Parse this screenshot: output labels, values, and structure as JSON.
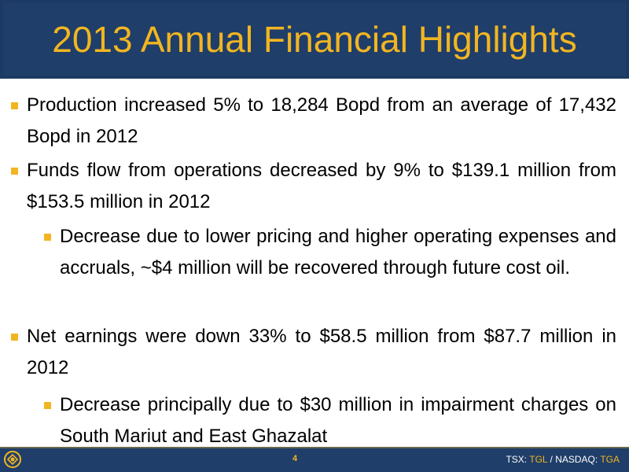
{
  "slide": {
    "title": "2013 Annual Financial Highlights",
    "bullets": [
      {
        "level": 1,
        "text": "Production increased 5% to 18,284 Bopd from an average of 17,432 Bopd in 2012"
      },
      {
        "level": 1,
        "text": "Funds flow from operations decreased by 9% to $139.1 million from $153.5 million in 2012"
      },
      {
        "level": 2,
        "text": "Decrease due to lower pricing and higher operating expenses and accruals, ~$4 million will be recovered through future cost oil."
      },
      {
        "level": 1,
        "text": "Net earnings were down 33% to $58.5 million from $87.7 million in 2012"
      },
      {
        "level": 2,
        "text": "Decrease principally due to $30 million in  impairment charges on South Mariut and East Ghazalat"
      }
    ]
  },
  "footer": {
    "page_number": "4",
    "tsx_label": "TSX: ",
    "tsx_symbol": "TGL",
    "separator": " / ",
    "nasdaq_label": "NASDAQ: ",
    "nasdaq_symbol": "TGA"
  },
  "colors": {
    "title_bg": "#1f3e69",
    "accent": "#f2b521"
  },
  "icons": {
    "logo": "company-logo-icon"
  }
}
